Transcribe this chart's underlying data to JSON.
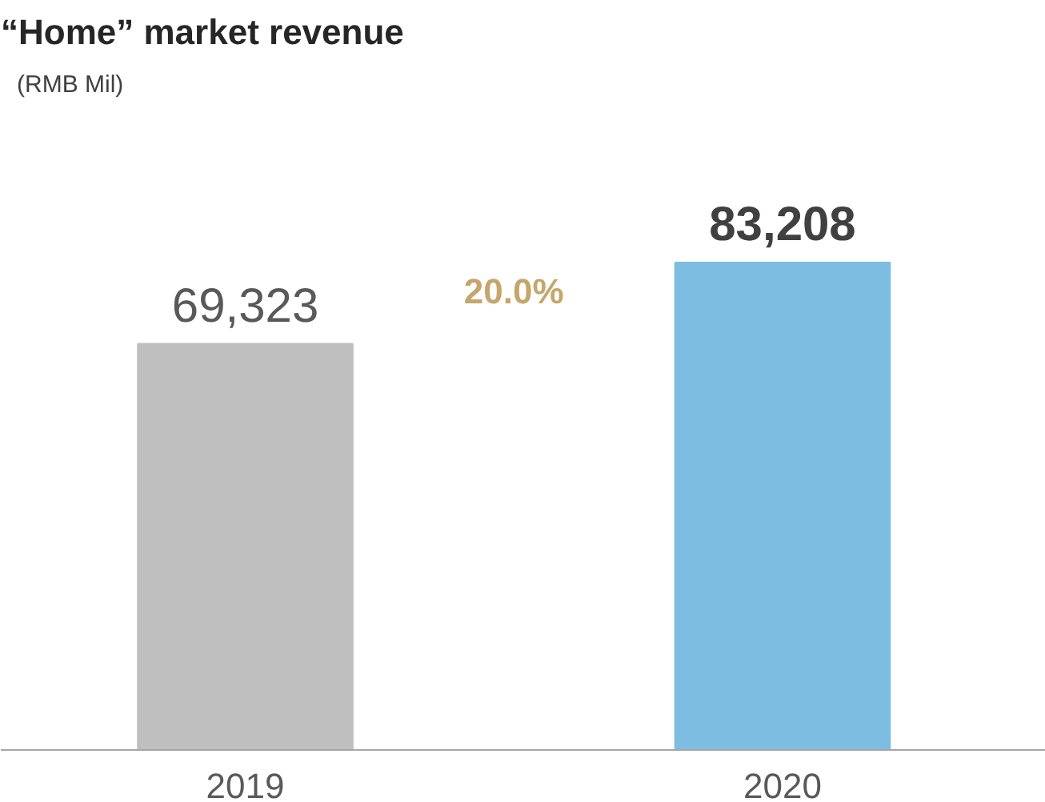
{
  "chart_data": {
    "type": "bar",
    "title": "“Home” market revenue",
    "subtitle": "(RMB Mil)",
    "categories": [
      "2019",
      "2020"
    ],
    "values": [
      69323,
      83208
    ],
    "colors": [
      "#bfbfbf",
      "#7dbde2"
    ],
    "value_labels": [
      "69,323",
      "83,208"
    ],
    "annotations": [
      "20.0%"
    ],
    "grid": false
  }
}
